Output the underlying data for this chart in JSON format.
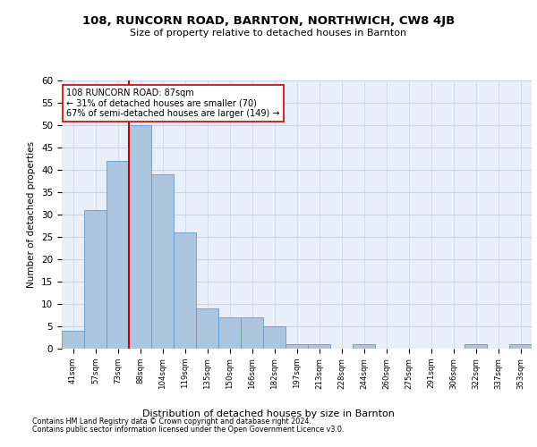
{
  "title1": "108, RUNCORN ROAD, BARNTON, NORTHWICH, CW8 4JB",
  "title2": "Size of property relative to detached houses in Barnton",
  "xlabel": "Distribution of detached houses by size in Barnton",
  "ylabel": "Number of detached properties",
  "footer1": "Contains HM Land Registry data © Crown copyright and database right 2024.",
  "footer2": "Contains public sector information licensed under the Open Government Licence v3.0.",
  "bin_labels": [
    "41sqm",
    "57sqm",
    "73sqm",
    "88sqm",
    "104sqm",
    "119sqm",
    "135sqm",
    "150sqm",
    "166sqm",
    "182sqm",
    "197sqm",
    "213sqm",
    "228sqm",
    "244sqm",
    "260sqm",
    "275sqm",
    "291sqm",
    "306sqm",
    "322sqm",
    "337sqm",
    "353sqm"
  ],
  "bar_values": [
    4,
    31,
    42,
    50,
    39,
    26,
    9,
    7,
    7,
    5,
    1,
    1,
    0,
    1,
    0,
    0,
    0,
    0,
    1,
    0,
    1
  ],
  "bar_color": "#adc6e0",
  "bar_edge_color": "#6699cc",
  "grid_color": "#c8d4e4",
  "bg_color": "#e8eff8",
  "annotation_text": "108 RUNCORN ROAD: 87sqm\n← 31% of detached houses are smaller (70)\n67% of semi-detached houses are larger (149) →",
  "annotation_box_color": "#ffffff",
  "annotation_box_edge_color": "#cc0000",
  "red_line_color": "#cc0000",
  "red_line_index": 3,
  "ylim": [
    0,
    60
  ],
  "yticks": [
    0,
    5,
    10,
    15,
    20,
    25,
    30,
    35,
    40,
    45,
    50,
    55,
    60
  ]
}
